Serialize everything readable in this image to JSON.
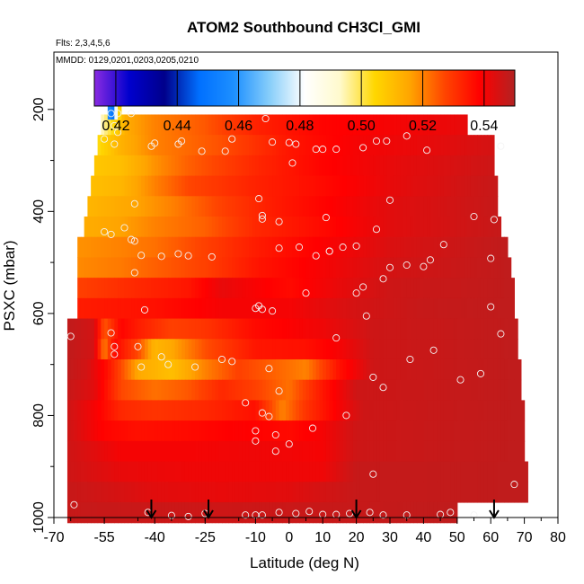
{
  "chart_data": {
    "type": "heatmap",
    "title": "ATOM2 Southbound CH3Cl_GMI",
    "flights_label": "Flts: 2,3,4,5,6",
    "dates_label": "MMDD: 0129,0201,0203,0205,0210",
    "xlabel": "Latitude (deg N)",
    "ylabel": "PSXC (mbar)",
    "xlim": [
      -70,
      80
    ],
    "ylim": [
      1000,
      100
    ],
    "x_ticks": [
      "-70",
      "-55",
      "-40",
      "-25",
      "-10",
      "0",
      "10",
      "20",
      "30",
      "40",
      "50",
      "60",
      "70",
      "80"
    ],
    "x_tick_values": [
      -70,
      -55,
      -40,
      -25,
      -10,
      0,
      10,
      20,
      30,
      40,
      50,
      60,
      70,
      80
    ],
    "y_ticks": [
      "200",
      "400",
      "600",
      "800",
      "1000"
    ],
    "y_tick_values": [
      200,
      400,
      600,
      800,
      1000
    ],
    "colorbar": {
      "min": 0.413,
      "max": 0.55,
      "tick_labels": [
        "0.42",
        "0.44",
        "0.46",
        "0.48",
        "0.50",
        "0.52",
        "0.54"
      ],
      "tick_values": [
        0.42,
        0.44,
        0.46,
        0.48,
        0.5,
        0.52,
        0.54
      ],
      "colors": [
        "#8a2be2",
        "#0000cd",
        "#00008b",
        "#0070ff",
        "#1e90ff",
        "#87cefa",
        "#ffffff",
        "#fffacd",
        "#ffd700",
        "#ffa500",
        "#ff4500",
        "#ff0000",
        "#b22222"
      ]
    },
    "rows": [
      {
        "p": 230,
        "lat": [
          -56,
          53
        ],
        "profile": [
          [
            -56,
            0.493
          ],
          [
            -52,
            0.505
          ],
          [
            -48,
            0.515
          ],
          [
            -40,
            0.52
          ],
          [
            -25,
            0.525
          ],
          [
            -10,
            0.533
          ],
          [
            10,
            0.538
          ],
          [
            30,
            0.54
          ],
          [
            53,
            0.542
          ]
        ]
      },
      {
        "p": 270,
        "lat": [
          -57,
          61
        ],
        "profile": [
          [
            -57,
            0.503
          ],
          [
            -50,
            0.513
          ],
          [
            -40,
            0.52
          ],
          [
            -20,
            0.526
          ],
          [
            0,
            0.535
          ],
          [
            20,
            0.54
          ],
          [
            40,
            0.542
          ],
          [
            61,
            0.545
          ]
        ]
      },
      {
        "p": 310,
        "lat": [
          -58,
          61
        ],
        "profile": [
          [
            -58,
            0.508
          ],
          [
            -50,
            0.51
          ],
          [
            -40,
            0.518
          ],
          [
            -30,
            0.524
          ],
          [
            -10,
            0.532
          ],
          [
            10,
            0.538
          ],
          [
            30,
            0.542
          ],
          [
            61,
            0.546
          ]
        ]
      },
      {
        "p": 350,
        "lat": [
          -59,
          62
        ],
        "profile": [
          [
            -59,
            0.51
          ],
          [
            -50,
            0.512
          ],
          [
            -40,
            0.52
          ],
          [
            -30,
            0.527
          ],
          [
            -10,
            0.533
          ],
          [
            10,
            0.537
          ],
          [
            30,
            0.542
          ],
          [
            62,
            0.547
          ]
        ]
      },
      {
        "p": 390,
        "lat": [
          -60,
          62
        ],
        "profile": [
          [
            -60,
            0.512
          ],
          [
            -45,
            0.516
          ],
          [
            -35,
            0.52
          ],
          [
            -20,
            0.528
          ],
          [
            -5,
            0.534
          ],
          [
            10,
            0.538
          ],
          [
            30,
            0.543
          ],
          [
            62,
            0.547
          ]
        ]
      },
      {
        "p": 430,
        "lat": [
          -61,
          63
        ],
        "profile": [
          [
            -61,
            0.514
          ],
          [
            -50,
            0.516
          ],
          [
            -40,
            0.52
          ],
          [
            -25,
            0.524
          ],
          [
            -10,
            0.532
          ],
          [
            10,
            0.537
          ],
          [
            30,
            0.543
          ],
          [
            63,
            0.547
          ]
        ]
      },
      {
        "p": 470,
        "lat": [
          -63,
          65
        ],
        "profile": [
          [
            -63,
            0.518
          ],
          [
            -50,
            0.52
          ],
          [
            -40,
            0.522
          ],
          [
            -25,
            0.528
          ],
          [
            -10,
            0.534
          ],
          [
            10,
            0.539
          ],
          [
            30,
            0.544
          ],
          [
            65,
            0.548
          ]
        ]
      },
      {
        "p": 510,
        "lat": [
          -63,
          66
        ],
        "profile": [
          [
            -63,
            0.519
          ],
          [
            -50,
            0.521
          ],
          [
            -40,
            0.524
          ],
          [
            -25,
            0.528
          ],
          [
            -10,
            0.535
          ],
          [
            10,
            0.54
          ],
          [
            30,
            0.545
          ],
          [
            66,
            0.548
          ]
        ]
      },
      {
        "p": 550,
        "lat": [
          -63,
          67
        ],
        "profile": [
          [
            -63,
            0.528
          ],
          [
            -45,
            0.532
          ],
          [
            -30,
            0.535
          ],
          [
            -20,
            0.542
          ],
          [
            0,
            0.537
          ],
          [
            15,
            0.542
          ],
          [
            30,
            0.546
          ],
          [
            67,
            0.548
          ]
        ]
      },
      {
        "p": 590,
        "lat": [
          -63,
          67
        ],
        "profile": [
          [
            -63,
            0.534
          ],
          [
            -40,
            0.536
          ],
          [
            -20,
            0.54
          ],
          [
            0,
            0.54
          ],
          [
            20,
            0.545
          ],
          [
            40,
            0.547
          ],
          [
            67,
            0.548
          ]
        ]
      },
      {
        "p": 630,
        "lat": [
          -66,
          68
        ],
        "profile": [
          [
            -66,
            0.548
          ],
          [
            -58,
            0.545
          ],
          [
            -55,
            0.525
          ],
          [
            -50,
            0.538
          ],
          [
            -45,
            0.534
          ],
          [
            -35,
            0.528
          ],
          [
            -25,
            0.53
          ],
          [
            -10,
            0.537
          ],
          [
            10,
            0.541
          ],
          [
            25,
            0.546
          ],
          [
            68,
            0.548
          ]
        ]
      },
      {
        "p": 670,
        "lat": [
          -66,
          68
        ],
        "profile": [
          [
            -66,
            0.548
          ],
          [
            -58,
            0.545
          ],
          [
            -55,
            0.52
          ],
          [
            -52,
            0.538
          ],
          [
            -45,
            0.527
          ],
          [
            -40,
            0.512
          ],
          [
            -35,
            0.515
          ],
          [
            -25,
            0.526
          ],
          [
            -10,
            0.535
          ],
          [
            5,
            0.536
          ],
          [
            15,
            0.54
          ],
          [
            25,
            0.546
          ],
          [
            68,
            0.548
          ]
        ]
      },
      {
        "p": 710,
        "lat": [
          -66,
          69
        ],
        "profile": [
          [
            -66,
            0.548
          ],
          [
            -60,
            0.545
          ],
          [
            -54,
            0.536
          ],
          [
            -45,
            0.515
          ],
          [
            -35,
            0.51
          ],
          [
            -25,
            0.52
          ],
          [
            -15,
            0.528
          ],
          [
            -5,
            0.524
          ],
          [
            5,
            0.52
          ],
          [
            15,
            0.536
          ],
          [
            25,
            0.546
          ],
          [
            69,
            0.548
          ]
        ]
      },
      {
        "p": 750,
        "lat": [
          -66,
          69
        ],
        "profile": [
          [
            -66,
            0.547
          ],
          [
            -58,
            0.543
          ],
          [
            -50,
            0.527
          ],
          [
            -40,
            0.522
          ],
          [
            -30,
            0.525
          ],
          [
            -20,
            0.532
          ],
          [
            -10,
            0.528
          ],
          [
            0,
            0.522
          ],
          [
            10,
            0.535
          ],
          [
            20,
            0.546
          ],
          [
            69,
            0.548
          ]
        ]
      },
      {
        "p": 790,
        "lat": [
          -66,
          70
        ],
        "profile": [
          [
            -66,
            0.546
          ],
          [
            -58,
            0.54
          ],
          [
            -50,
            0.532
          ],
          [
            -40,
            0.53
          ],
          [
            -25,
            0.532
          ],
          [
            -10,
            0.536
          ],
          [
            -2,
            0.52
          ],
          [
            5,
            0.53
          ],
          [
            15,
            0.54
          ],
          [
            22,
            0.546
          ],
          [
            70,
            0.548
          ]
        ]
      },
      {
        "p": 830,
        "lat": [
          -66,
          70
        ],
        "profile": [
          [
            -66,
            0.546
          ],
          [
            -55,
            0.538
          ],
          [
            -45,
            0.536
          ],
          [
            -30,
            0.537
          ],
          [
            -15,
            0.539
          ],
          [
            0,
            0.537
          ],
          [
            10,
            0.54
          ],
          [
            20,
            0.546
          ],
          [
            70,
            0.548
          ]
        ]
      },
      {
        "p": 870,
        "lat": [
          -66,
          70
        ],
        "profile": [
          [
            -66,
            0.546
          ],
          [
            -50,
            0.54
          ],
          [
            -30,
            0.54
          ],
          [
            -10,
            0.541
          ],
          [
            10,
            0.54
          ],
          [
            20,
            0.546
          ],
          [
            70,
            0.548
          ]
        ]
      },
      {
        "p": 910,
        "lat": [
          -66,
          71
        ],
        "profile": [
          [
            -66,
            0.546
          ],
          [
            -50,
            0.542
          ],
          [
            -30,
            0.541
          ],
          [
            -10,
            0.541
          ],
          [
            10,
            0.541
          ],
          [
            20,
            0.547
          ],
          [
            71,
            0.548
          ]
        ]
      },
      {
        "p": 950,
        "lat": [
          -66,
          71
        ],
        "profile": [
          [
            -66,
            0.547
          ],
          [
            -40,
            0.543
          ],
          [
            -20,
            0.542
          ],
          [
            0,
            0.543
          ],
          [
            20,
            0.547
          ],
          [
            71,
            0.548
          ]
        ]
      },
      {
        "p": 990,
        "lat": [
          -66,
          50
        ],
        "profile": [
          [
            -66,
            0.547
          ],
          [
            -20,
            0.546
          ],
          [
            20,
            0.547
          ],
          [
            50,
            0.548
          ]
        ]
      }
    ],
    "notch": {
      "p_top": 160,
      "p_bottom": 220,
      "lat": [
        -54,
        -50
      ],
      "profile": [
        [
          -54,
          0.47
        ],
        [
          -53,
          0.44
        ],
        [
          -52,
          0.46
        ],
        [
          -51,
          0.5
        ],
        [
          -50,
          0.51
        ]
      ]
    },
    "observations": [
      [
        -53,
        208
      ],
      [
        -51,
        208
      ],
      [
        -47,
        208
      ],
      [
        -52,
        232
      ],
      [
        -51,
        245
      ],
      [
        -7,
        218
      ],
      [
        -55,
        258
      ],
      [
        -52,
        268
      ],
      [
        -40,
        266
      ],
      [
        -32,
        262
      ],
      [
        -17,
        258
      ],
      [
        -41,
        272
      ],
      [
        -33,
        268
      ],
      [
        -26,
        282
      ],
      [
        -19,
        282
      ],
      [
        -5,
        264
      ],
      [
        0,
        265
      ],
      [
        2,
        268
      ],
      [
        8,
        278
      ],
      [
        10,
        278
      ],
      [
        14,
        278
      ],
      [
        22,
        275
      ],
      [
        26,
        262
      ],
      [
        29,
        262
      ],
      [
        35,
        252
      ],
      [
        41,
        280
      ],
      [
        63,
        272
      ],
      [
        1,
        305
      ],
      [
        -46,
        385
      ],
      [
        -9,
        375
      ],
      [
        -8,
        408
      ],
      [
        -8,
        415
      ],
      [
        -3,
        420
      ],
      [
        11,
        412
      ],
      [
        30,
        378
      ],
      [
        55,
        410
      ],
      [
        61,
        416
      ],
      [
        -55,
        440
      ],
      [
        -53,
        445
      ],
      [
        -49,
        432
      ],
      [
        -46,
        458
      ],
      [
        -47,
        455
      ],
      [
        26,
        435
      ],
      [
        -3,
        472
      ],
      [
        3,
        470
      ],
      [
        12,
        478
      ],
      [
        16,
        470
      ],
      [
        20,
        468
      ],
      [
        46,
        465
      ],
      [
        60,
        492
      ],
      [
        -44,
        486
      ],
      [
        -38,
        488
      ],
      [
        -33,
        483
      ],
      [
        -30,
        487
      ],
      [
        -23,
        489
      ],
      [
        -46,
        520
      ],
      [
        8,
        487
      ],
      [
        12,
        478
      ],
      [
        30,
        510
      ],
      [
        35,
        505
      ],
      [
        40,
        508
      ],
      [
        42,
        495
      ],
      [
        -43,
        593
      ],
      [
        -10,
        590
      ],
      [
        -9,
        585
      ],
      [
        -8,
        592
      ],
      [
        -5,
        595
      ],
      [
        5,
        560
      ],
      [
        20,
        560
      ],
      [
        22,
        548
      ],
      [
        28,
        532
      ],
      [
        -65,
        645
      ],
      [
        -53,
        638
      ],
      [
        -52,
        665
      ],
      [
        -52,
        680
      ],
      [
        -45,
        665
      ],
      [
        -38,
        685
      ],
      [
        -44,
        705
      ],
      [
        -36,
        700
      ],
      [
        -28,
        705
      ],
      [
        -20,
        690
      ],
      [
        -17,
        694
      ],
      [
        14,
        648
      ],
      [
        23,
        605
      ],
      [
        25,
        725
      ],
      [
        28,
        745
      ],
      [
        36,
        690
      ],
      [
        43,
        672
      ],
      [
        51,
        730
      ],
      [
        57,
        718
      ],
      [
        60,
        587
      ],
      [
        63,
        640
      ],
      [
        -6,
        708
      ],
      [
        -3,
        752
      ],
      [
        -13,
        775
      ],
      [
        -8,
        795
      ],
      [
        -6,
        802
      ],
      [
        -4,
        838
      ],
      [
        -10,
        830
      ],
      [
        -10,
        850
      ],
      [
        0,
        856
      ],
      [
        -4,
        870
      ],
      [
        7,
        825
      ],
      [
        17,
        800
      ],
      [
        25,
        915
      ],
      [
        67,
        935
      ],
      [
        -64,
        975
      ],
      [
        -42,
        990
      ],
      [
        -35,
        996
      ],
      [
        -30,
        998
      ],
      [
        -25,
        992
      ],
      [
        -13,
        995
      ],
      [
        -10,
        995
      ],
      [
        -8,
        995
      ],
      [
        -3,
        990
      ],
      [
        2,
        992
      ],
      [
        6,
        988
      ],
      [
        10,
        994
      ],
      [
        14,
        994
      ],
      [
        18,
        992
      ],
      [
        24,
        990
      ],
      [
        28,
        995
      ],
      [
        35,
        995
      ],
      [
        45,
        994
      ],
      [
        48,
        990
      ],
      [
        55,
        995
      ]
    ],
    "flight_arrows_lat": [
      -41,
      -24,
      20,
      61
    ]
  }
}
